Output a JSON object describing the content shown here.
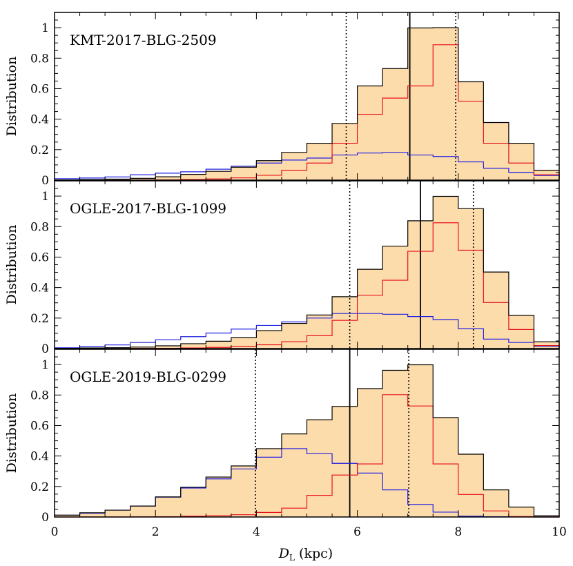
{
  "colors": {
    "fill": "#fddcac",
    "total": "#000000",
    "bulge": "#e8101a",
    "disk": "#1f1fe0",
    "median": "#000000"
  },
  "xlabel_main": "D",
  "xlabel_sub": "L",
  "xlabel_unit": " (kpc)",
  "chart_data": [
    {
      "type": "histogram",
      "title": "KMT-2017-BLG-2509",
      "ylabel": "Distribution",
      "xlim": [
        0,
        10
      ],
      "ylim": [
        0,
        1.1
      ],
      "x_ticks": [
        "0",
        "2",
        "4",
        "6",
        "8",
        "10"
      ],
      "y_ticks": [
        "0",
        "0.2",
        "0.4",
        "0.6",
        "0.8",
        "1"
      ],
      "bin_edges": [
        0,
        0.5,
        1.0,
        1.5,
        2.0,
        2.5,
        3.0,
        3.5,
        4.0,
        4.5,
        5.0,
        5.5,
        6.0,
        6.5,
        7.0,
        7.5,
        8.0,
        8.5,
        9.0,
        9.5,
        10.0
      ],
      "series": [
        {
          "values": [
            0.002,
            0.004,
            0.007,
            0.012,
            0.022,
            0.038,
            0.058,
            0.085,
            0.128,
            0.182,
            0.242,
            0.372,
            0.618,
            0.732,
            0.998,
            1.0,
            0.645,
            0.378,
            0.242,
            0.065
          ]
        },
        {
          "values": [
            0.0,
            0.0,
            0.0,
            0.001,
            0.002,
            0.004,
            0.008,
            0.015,
            0.032,
            0.065,
            0.112,
            0.242,
            0.432,
            0.538,
            0.618,
            0.888,
            0.518,
            0.242,
            0.112,
            0.035
          ]
        },
        {
          "values": [
            0.01,
            0.014,
            0.021,
            0.035,
            0.046,
            0.055,
            0.072,
            0.092,
            0.112,
            0.132,
            0.145,
            0.165,
            0.178,
            0.182,
            0.165,
            0.155,
            0.12,
            0.078,
            0.051,
            0.031
          ]
        }
      ],
      "median": 7.04,
      "lower": 5.78,
      "upper": 7.95
    },
    {
      "type": "histogram",
      "title": "OGLE-2017-BLG-1099",
      "ylabel": "Distribution",
      "xlim": [
        0,
        10
      ],
      "ylim": [
        0,
        1.1
      ],
      "x_ticks": [
        "0",
        "2",
        "4",
        "6",
        "8",
        "10"
      ],
      "y_ticks": [
        "0",
        "0.2",
        "0.4",
        "0.6",
        "0.8",
        "1"
      ],
      "bin_edges": [
        0,
        0.5,
        1.0,
        1.5,
        2.0,
        2.5,
        3.0,
        3.5,
        4.0,
        4.5,
        5.0,
        5.5,
        6.0,
        6.5,
        7.0,
        7.5,
        8.0,
        8.5,
        9.0,
        9.5,
        10.0
      ],
      "series": [
        {
          "values": [
            0.002,
            0.004,
            0.006,
            0.01,
            0.018,
            0.032,
            0.048,
            0.072,
            0.118,
            0.165,
            0.22,
            0.34,
            0.52,
            0.672,
            0.838,
            0.998,
            0.918,
            0.502,
            0.218,
            0.045
          ]
        },
        {
          "values": [
            0.0,
            0.0,
            0.0,
            0.001,
            0.002,
            0.004,
            0.008,
            0.014,
            0.025,
            0.045,
            0.085,
            0.185,
            0.35,
            0.448,
            0.638,
            0.825,
            0.645,
            0.302,
            0.125,
            0.02
          ]
        },
        {
          "values": [
            0.005,
            0.012,
            0.024,
            0.04,
            0.058,
            0.078,
            0.102,
            0.128,
            0.152,
            0.175,
            0.2,
            0.23,
            0.23,
            0.225,
            0.21,
            0.19,
            0.13,
            0.062,
            0.04,
            0.015
          ]
        }
      ],
      "median": 7.25,
      "lower": 5.85,
      "upper": 8.3
    },
    {
      "type": "histogram",
      "title": "OGLE-2019-BLG-0299",
      "ylabel": "Distribution",
      "xlim": [
        0,
        10
      ],
      "ylim": [
        0,
        1.1
      ],
      "x_ticks": [
        "0",
        "2",
        "4",
        "6",
        "8",
        "10"
      ],
      "y_ticks": [
        "0",
        "0.2",
        "0.4",
        "0.6",
        "0.8",
        "1"
      ],
      "bin_edges": [
        0,
        0.5,
        1.0,
        1.5,
        2.0,
        2.5,
        3.0,
        3.5,
        4.0,
        4.5,
        5.0,
        5.5,
        6.0,
        6.5,
        7.0,
        7.5,
        8.0,
        8.5,
        9.0,
        9.5,
        10.0
      ],
      "series": [
        {
          "values": [
            0.012,
            0.028,
            0.045,
            0.072,
            0.132,
            0.195,
            0.262,
            0.335,
            0.448,
            0.545,
            0.638,
            0.725,
            0.842,
            0.962,
            0.998,
            0.652,
            0.412,
            0.178,
            0.065,
            0.008
          ]
        },
        {
          "values": [
            0.0,
            0.0,
            0.0,
            0.001,
            0.002,
            0.005,
            0.008,
            0.015,
            0.03,
            0.058,
            0.142,
            0.275,
            0.348,
            0.802,
            0.728,
            0.348,
            0.148,
            0.04,
            0.003,
            0.0
          ]
        },
        {
          "values": [
            0.012,
            0.025,
            0.045,
            0.072,
            0.13,
            0.19,
            0.25,
            0.315,
            0.392,
            0.448,
            0.415,
            0.352,
            0.288,
            0.178,
            0.082,
            0.032,
            0.005,
            0.002,
            0.001,
            0.0
          ]
        }
      ],
      "median": 5.85,
      "lower": 3.98,
      "upper": 7.02
    }
  ]
}
